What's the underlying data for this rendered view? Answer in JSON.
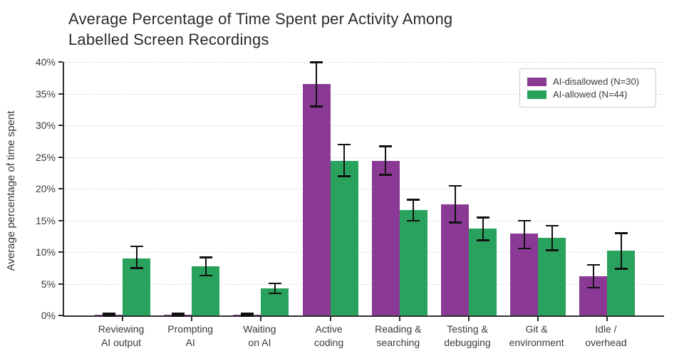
{
  "header": {
    "title_line1": "Average Percentage of Time Spent per Activity Among",
    "title_line2": "Labelled Screen Recordings"
  },
  "chart_data": {
    "type": "bar",
    "title": "Average Percentage of Time Spent per Activity Among Labelled Screen Recordings",
    "xlabel": "",
    "ylabel": "Average percentage of time spent",
    "ylim": [
      0,
      40
    ],
    "ytick_step": 5,
    "ytick_labels": [
      "0%",
      "5%",
      "10%",
      "15%",
      "20%",
      "25%",
      "30%",
      "35%",
      "40%"
    ],
    "grid": "horizontal-dashed",
    "legend_position": "upper-right",
    "error_bars": true,
    "categories": [
      [
        "Reviewing",
        "AI output"
      ],
      [
        "Prompting",
        "AI"
      ],
      [
        "Waiting",
        "on AI"
      ],
      [
        "Active",
        "coding"
      ],
      [
        "Reading &",
        "searching"
      ],
      [
        "Testing &",
        "debugging"
      ],
      [
        "Git &",
        "environment"
      ],
      [
        "Idle /",
        "overhead"
      ]
    ],
    "series": [
      {
        "name": "AI-disallowed (N=30)",
        "color": "#8a3a95",
        "values": [
          0.1,
          0.1,
          0.1,
          36.5,
          24.4,
          17.5,
          12.9,
          6.2
        ],
        "error_low": [
          0.0,
          0.0,
          0.0,
          33.0,
          22.2,
          14.7,
          10.6,
          4.4
        ],
        "error_high": [
          0.3,
          0.3,
          0.3,
          40.0,
          26.7,
          20.5,
          15.0,
          8.0
        ]
      },
      {
        "name": "AI-allowed (N=44)",
        "color": "#29a25e",
        "values": [
          9.0,
          7.8,
          4.3,
          24.4,
          16.6,
          13.7,
          12.3,
          10.2
        ],
        "error_low": [
          7.5,
          6.3,
          3.5,
          22.0,
          15.0,
          11.9,
          10.3,
          7.4
        ],
        "error_high": [
          10.9,
          9.2,
          5.1,
          27.0,
          18.3,
          15.5,
          14.2,
          13.0
        ]
      }
    ]
  }
}
